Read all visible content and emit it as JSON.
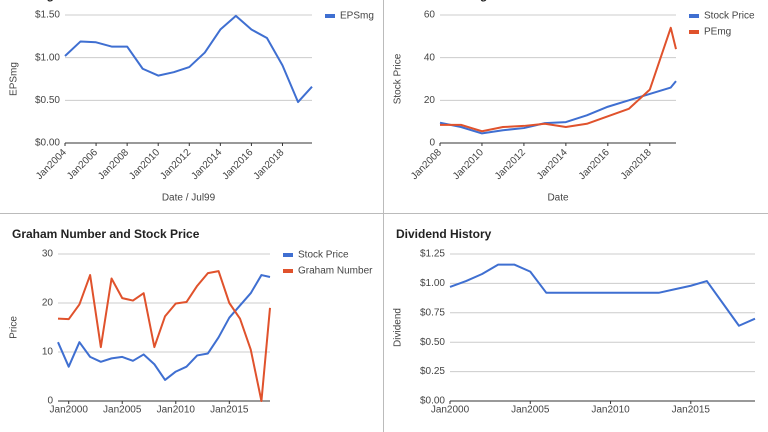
{
  "chart_data": [
    {
      "type": "line",
      "title": "EPSmg",
      "xlabel": "Date / Jul99",
      "ylabel": "EPSmg",
      "legend": "right",
      "grid": true,
      "tick_rotation": -45,
      "x": [
        2004,
        2005,
        2006,
        2007,
        2008,
        2009,
        2010,
        2011,
        2012,
        2013,
        2014,
        2015,
        2016,
        2017,
        2018,
        2019,
        2019.9
      ],
      "series": [
        {
          "name": "EPSmg",
          "color": "#3f6fd1",
          "values": [
            1.02,
            1.19,
            1.18,
            1.13,
            1.13,
            0.87,
            0.79,
            0.83,
            0.89,
            1.06,
            1.33,
            1.49,
            1.33,
            1.23,
            0.91,
            0.48,
            0.66
          ]
        }
      ],
      "xlim": [
        2004,
        2019.9
      ],
      "xticks": [
        {
          "value": 2004,
          "label": "Jan2004"
        },
        {
          "value": 2006,
          "label": "Jan2006"
        },
        {
          "value": 2008,
          "label": "Jan2008"
        },
        {
          "value": 2010,
          "label": "Jan2010"
        },
        {
          "value": 2012,
          "label": "Jan2012"
        },
        {
          "value": 2014,
          "label": "Jan2014"
        },
        {
          "value": 2016,
          "label": "Jan2016"
        },
        {
          "value": 2018,
          "label": "Jan2018"
        }
      ],
      "ylim": [
        0,
        1.5
      ],
      "yticks": [
        {
          "value": 0,
          "label": "$0.00"
        },
        {
          "value": 0.5,
          "label": "$0.50"
        },
        {
          "value": 1,
          "label": "$1.00"
        },
        {
          "value": 1.5,
          "label": "$1.50"
        }
      ]
    },
    {
      "type": "line",
      "title": "Price and PEmg",
      "xlabel": "Date",
      "ylabel": "Stock Price",
      "legend": "right",
      "grid": true,
      "tick_rotation": -45,
      "x": [
        2008,
        2009,
        2010,
        2011,
        2012,
        2013,
        2014,
        2015,
        2016,
        2017,
        2018,
        2019,
        2019.25
      ],
      "series": [
        {
          "name": "Stock Price",
          "color": "#3f6fd1",
          "values": [
            9.5,
            7.5,
            4.5,
            6,
            7,
            9.3,
            9.8,
            13,
            17,
            20,
            23,
            26,
            29
          ]
        },
        {
          "name": "PEmg",
          "color": "#e0522c",
          "values": [
            8.5,
            8.5,
            5.5,
            7.5,
            8,
            9,
            7.5,
            9,
            12.5,
            16,
            25,
            54,
            44
          ]
        }
      ],
      "xlim": [
        2008,
        2019.25
      ],
      "xticks": [
        {
          "value": 2008,
          "label": "Jan2008"
        },
        {
          "value": 2010,
          "label": "Jan2010"
        },
        {
          "value": 2012,
          "label": "Jan2012"
        },
        {
          "value": 2014,
          "label": "Jan2014"
        },
        {
          "value": 2016,
          "label": "Jan2016"
        },
        {
          "value": 2018,
          "label": "Jan2018"
        }
      ],
      "ylim": [
        0,
        60
      ],
      "yticks": [
        0,
        20,
        40,
        60
      ]
    },
    {
      "type": "line",
      "title": "Graham Number and Stock Price",
      "ylabel": "Price",
      "legend": "right",
      "grid": true,
      "tick_rotation": 0,
      "x": [
        1999,
        2000,
        2001,
        2002,
        2003,
        2004,
        2005,
        2006,
        2007,
        2008,
        2009,
        2010,
        2011,
        2012,
        2013,
        2014,
        2015,
        2016,
        2017,
        2018,
        2018.8
      ],
      "series": [
        {
          "name": "Stock Price",
          "color": "#3f6fd1",
          "values": [
            12,
            7,
            12,
            9,
            8,
            8.7,
            9,
            8.2,
            9.5,
            7.5,
            4.3,
            6,
            7,
            9.3,
            9.7,
            13,
            17,
            19.5,
            22,
            25.7,
            25.3
          ]
        },
        {
          "name": "Graham Number",
          "color": "#e0522c",
          "values": [
            16.8,
            16.7,
            19.7,
            25.7,
            11,
            25,
            21,
            20.5,
            22,
            11,
            17.3,
            19.9,
            20.2,
            23.5,
            26.1,
            26.5,
            20,
            16.8,
            10.5,
            0,
            19
          ]
        }
      ],
      "xlim": [
        1999,
        2018.8
      ],
      "xticks": [
        {
          "value": 2000,
          "label": "Jan2000"
        },
        {
          "value": 2005,
          "label": "Jan2005"
        },
        {
          "value": 2010,
          "label": "Jan2010"
        },
        {
          "value": 2015,
          "label": "Jan2015"
        }
      ],
      "ylim": [
        0,
        30
      ],
      "yticks": [
        0,
        10,
        20,
        30
      ]
    },
    {
      "type": "line",
      "title": "Dividend History",
      "ylabel": "Dividend",
      "grid": true,
      "tick_rotation": 0,
      "x": [
        2000,
        2001,
        2002,
        2003,
        2004,
        2005,
        2006,
        2007,
        2008,
        2009,
        2010,
        2011,
        2012,
        2013,
        2014,
        2015,
        2016,
        2017,
        2018,
        2019
      ],
      "series": [
        {
          "color": "#3f6fd1",
          "values": [
            0.97,
            1.02,
            1.08,
            1.16,
            1.16,
            1.1,
            0.92,
            0.92,
            0.92,
            0.92,
            0.92,
            0.92,
            0.92,
            0.92,
            0.95,
            0.98,
            1.02,
            0.83,
            0.64,
            0.7
          ]
        }
      ],
      "xlim": [
        2000,
        2019
      ],
      "xticks": [
        {
          "value": 2000,
          "label": "Jan2000"
        },
        {
          "value": 2005,
          "label": "Jan2005"
        },
        {
          "value": 2010,
          "label": "Jan2010"
        },
        {
          "value": 2015,
          "label": "Jan2015"
        }
      ],
      "ylim": [
        0,
        1.25
      ],
      "yticks": [
        {
          "value": 0,
          "label": "$0.00"
        },
        {
          "value": 0.25,
          "label": "$0.25"
        },
        {
          "value": 0.5,
          "label": "$0.50"
        },
        {
          "value": 0.75,
          "label": "$0.75"
        },
        {
          "value": 1,
          "label": "$1.00"
        },
        {
          "value": 1.25,
          "label": "$1.25"
        }
      ]
    }
  ]
}
